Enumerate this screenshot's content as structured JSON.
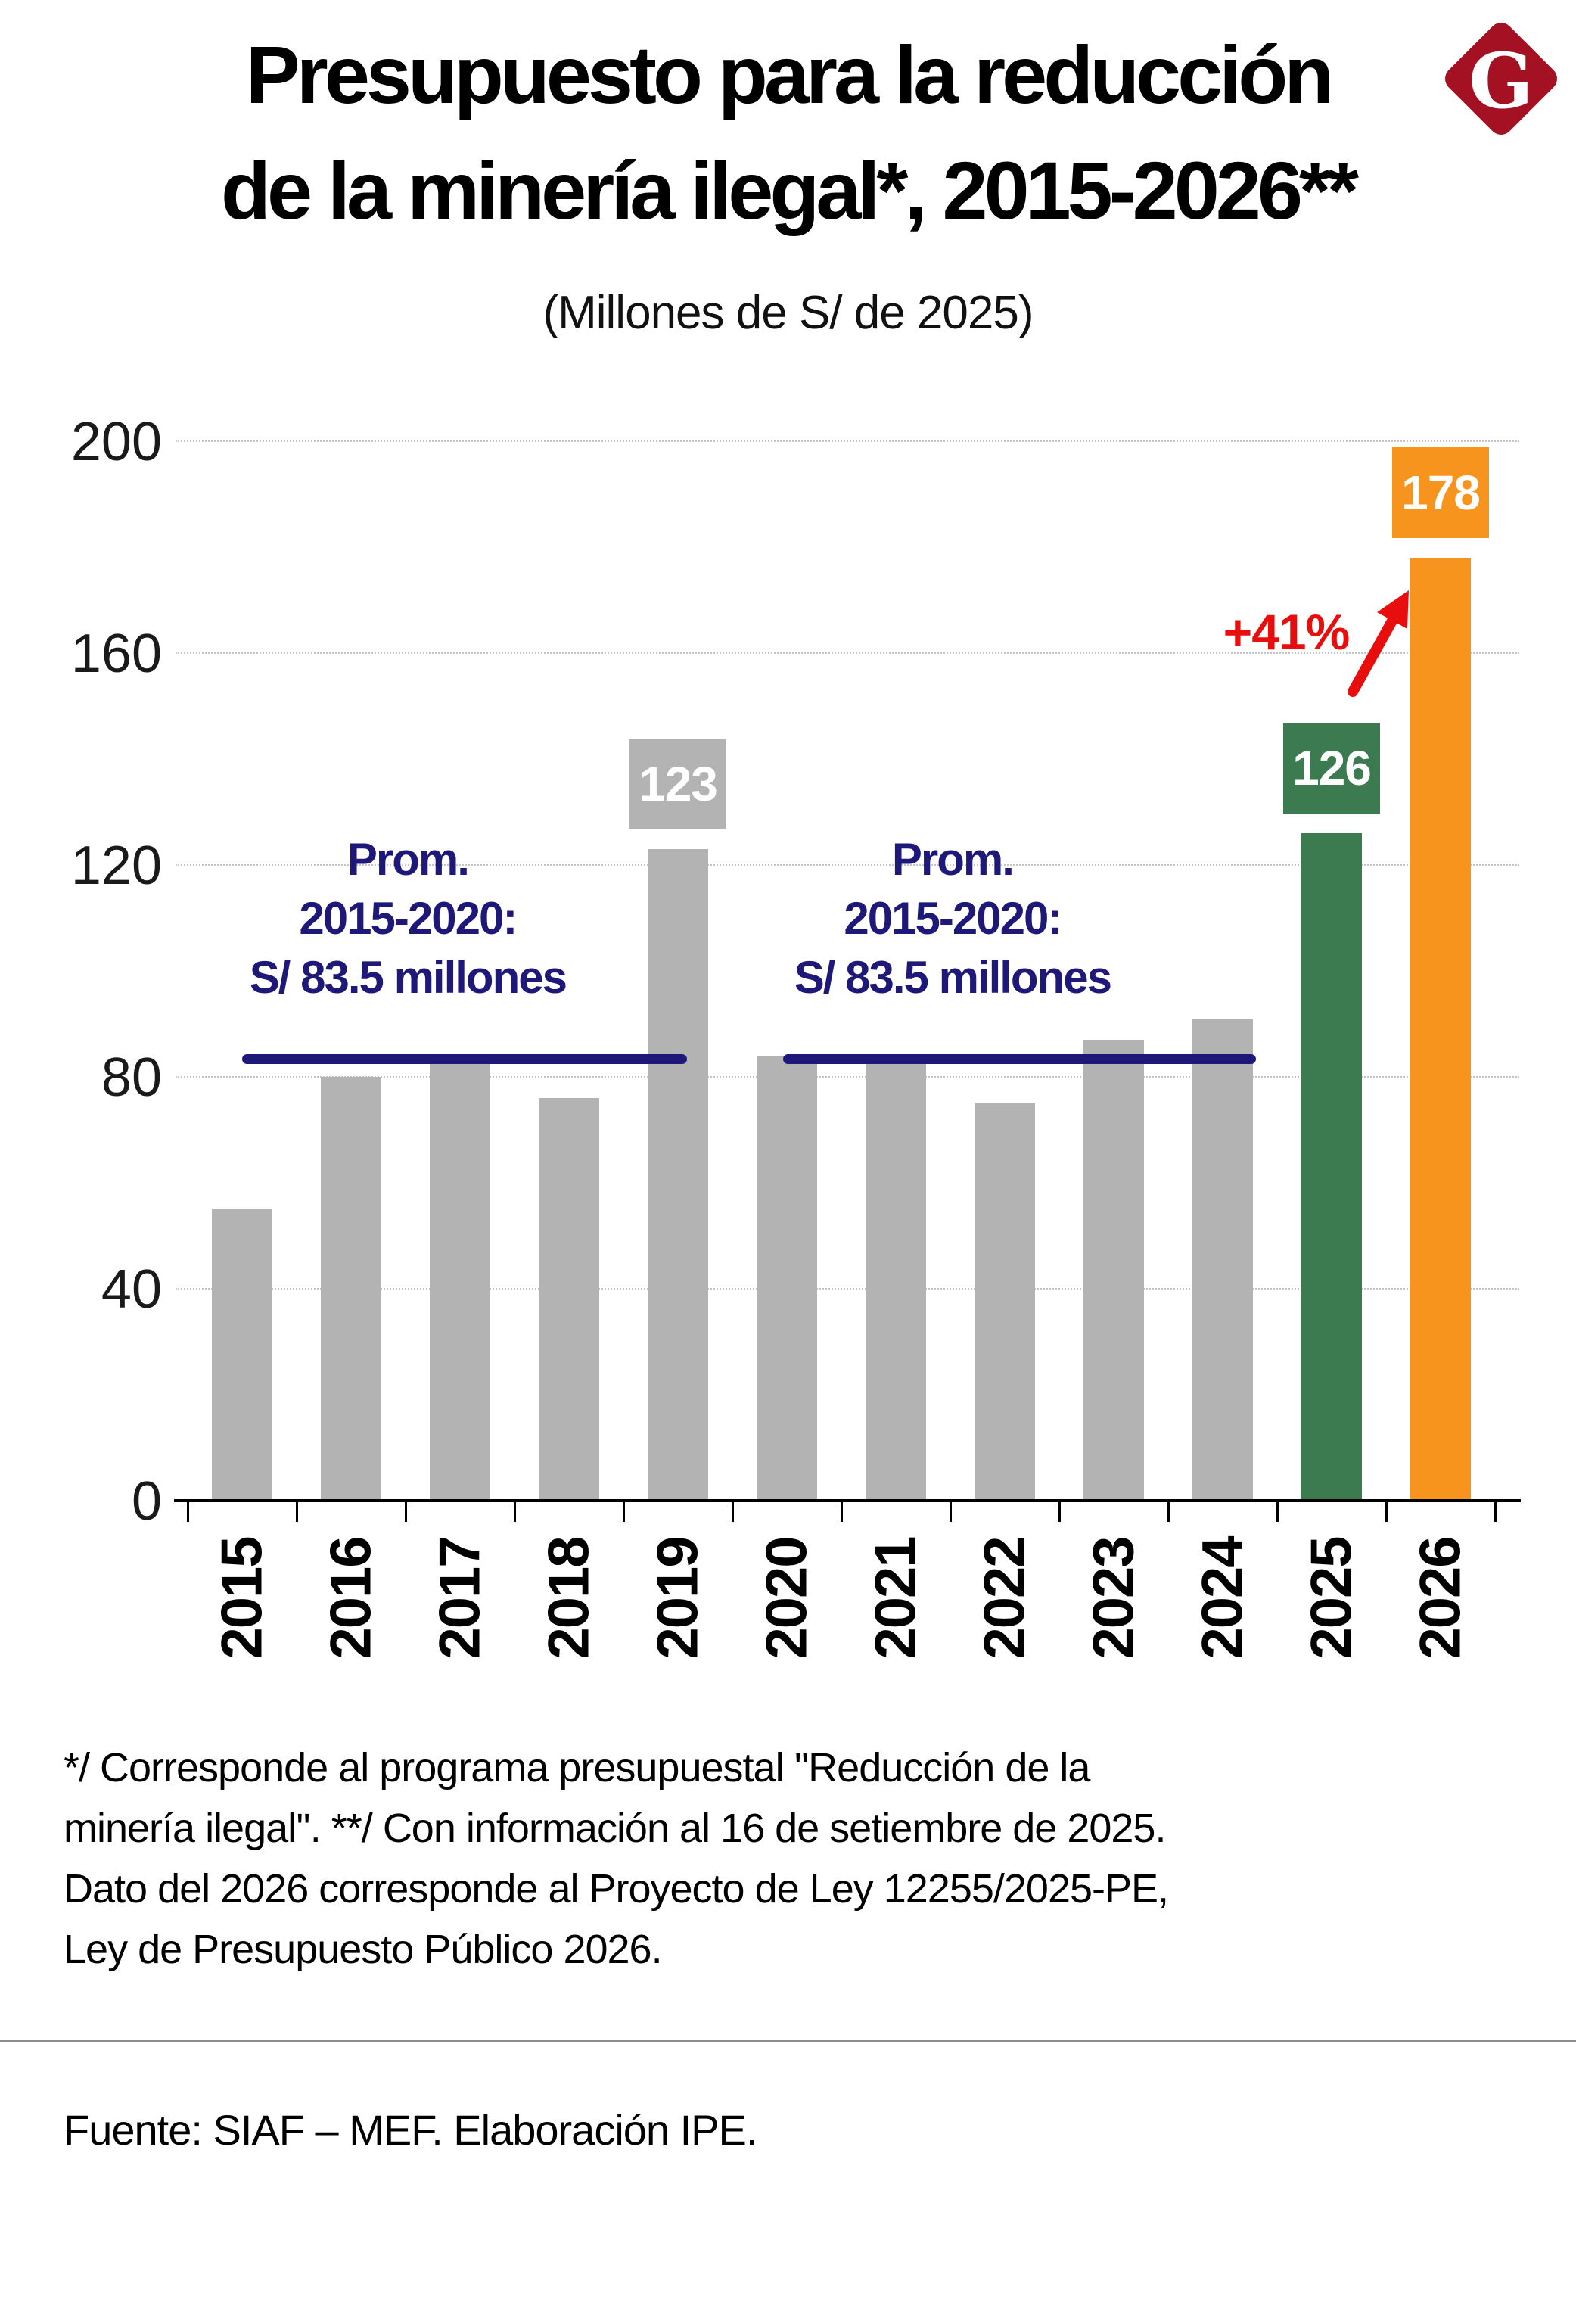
{
  "brand": {
    "logo_letter": "G",
    "logo_bg": "#A31122"
  },
  "header": {
    "title_line1": "Presupuesto para la reducción",
    "title_line2": "de la minería ilegal*, 2015-2026**",
    "subtitle": "(Millones de S/ de 2025)"
  },
  "chart_data": {
    "type": "bar",
    "title": "Presupuesto para la reducción de la minería ilegal*, 2015-2026**",
    "subtitle": "(Millones de S/ de 2025)",
    "categories": [
      "2015",
      "2016",
      "2017",
      "2018",
      "2019",
      "2020",
      "2021",
      "2022",
      "2023",
      "2024",
      "2025",
      "2026"
    ],
    "values": [
      55,
      80,
      83,
      76,
      123,
      84,
      83,
      75,
      87,
      91,
      126,
      178
    ],
    "ylim": [
      0,
      200
    ],
    "yticks": [
      0,
      40,
      80,
      120,
      160,
      200
    ],
    "grid": "horizontal-dotted",
    "legend": "none",
    "colors": {
      "bar_default": "#B3B3B3",
      "bar_2025": "#3C7B4F",
      "bar_2026": "#F7941E",
      "annotation_navy": "#1E1878",
      "callout_red": "#E90E0E"
    },
    "bar_colors": {
      "2025": "#3C7B4F",
      "2026": "#F7941E"
    },
    "value_badges": [
      {
        "category": "2019",
        "text": "123",
        "color": "#B3B3B3"
      },
      {
        "category": "2025",
        "text": "126",
        "color": "#3C7B4F"
      },
      {
        "category": "2026",
        "text": "178",
        "color": "#F7941E"
      }
    ],
    "avg_annotations": [
      {
        "lines": [
          "Prom.",
          "2015-2020:",
          "S/ 83.5 millones"
        ],
        "line_value": 83.5,
        "from": "2015",
        "to": "2019"
      },
      {
        "lines": [
          "Prom.",
          "2015-2020:",
          "S/ 83.5 millones"
        ],
        "line_value": 83.5,
        "from": "2020",
        "to": "2024"
      }
    ],
    "growth_callout": {
      "text": "+41%",
      "color": "#E90E0E",
      "points_to": "2026"
    }
  },
  "footnote": {
    "lines": [
      "*/ Corresponde al programa presupuestal ''Reducción de la",
      "minería ilegal''. **/ Con información al 16 de setiembre de 2025.",
      "Dato del 2026 corresponde al Proyecto de Ley 12255/2025-PE,",
      "Ley de Presupuesto Público 2026."
    ]
  },
  "source": "Fuente: SIAF – MEF. Elaboración IPE."
}
